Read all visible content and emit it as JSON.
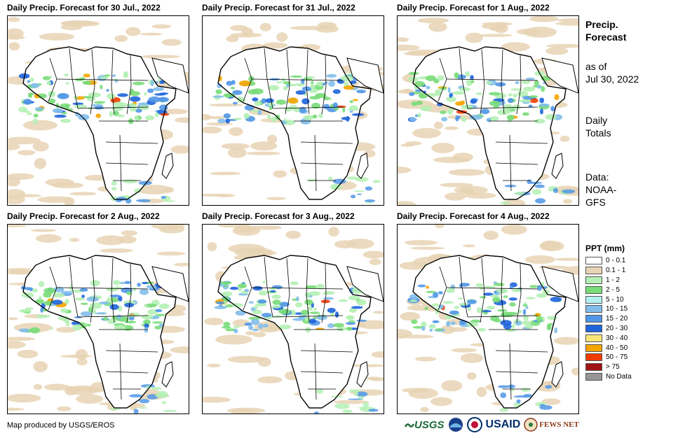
{
  "panels": [
    {
      "title": "Daily Precip. Forecast for 30 Jul., 2022"
    },
    {
      "title": "Daily Precip. Forecast for 31 Jul., 2022"
    },
    {
      "title": "Daily Precip. Forecast for 1 Aug., 2022"
    },
    {
      "title": "Daily Precip. Forecast for 2 Aug., 2022"
    },
    {
      "title": "Daily Precip. Forecast for 3 Aug., 2022"
    },
    {
      "title": "Daily Precip. Forecast for 4 Aug., 2022"
    }
  ],
  "sidebar": {
    "title_line1": "Precip.",
    "title_line2": "Forecast",
    "asof_line1": "as of",
    "asof_line2": "Jul 30, 2022",
    "totals_line1": "Daily",
    "totals_line2": "Totals",
    "data_line1": "Data:",
    "data_line2": "NOAA-",
    "data_line3": "GFS"
  },
  "legend": {
    "title": "PPT (mm)",
    "items": [
      {
        "label": "0 - 0.1",
        "color": "#ffffff"
      },
      {
        "label": "0.1 - 1",
        "color": "#e8d4b4"
      },
      {
        "label": "1 - 2",
        "color": "#b4f0b4"
      },
      {
        "label": "2 - 5",
        "color": "#78dc78"
      },
      {
        "label": "5 - 10",
        "color": "#b4f0f0"
      },
      {
        "label": "10 - 15",
        "color": "#82beeb"
      },
      {
        "label": "15 - 20",
        "color": "#5096e6"
      },
      {
        "label": "20 - 30",
        "color": "#1e64dc"
      },
      {
        "label": "30 - 40",
        "color": "#fae678"
      },
      {
        "label": "40 - 50",
        "color": "#f5a500"
      },
      {
        "label": "50 - 75",
        "color": "#f03c00"
      },
      {
        "label": "> 75",
        "color": "#a01414"
      },
      {
        "label": "No Data",
        "color": "#969696"
      }
    ]
  },
  "footer": {
    "credit": "Map produced by USGS/EROS",
    "logos": [
      "USGS",
      "NOAA",
      "USAID",
      "FEWS NET"
    ]
  }
}
